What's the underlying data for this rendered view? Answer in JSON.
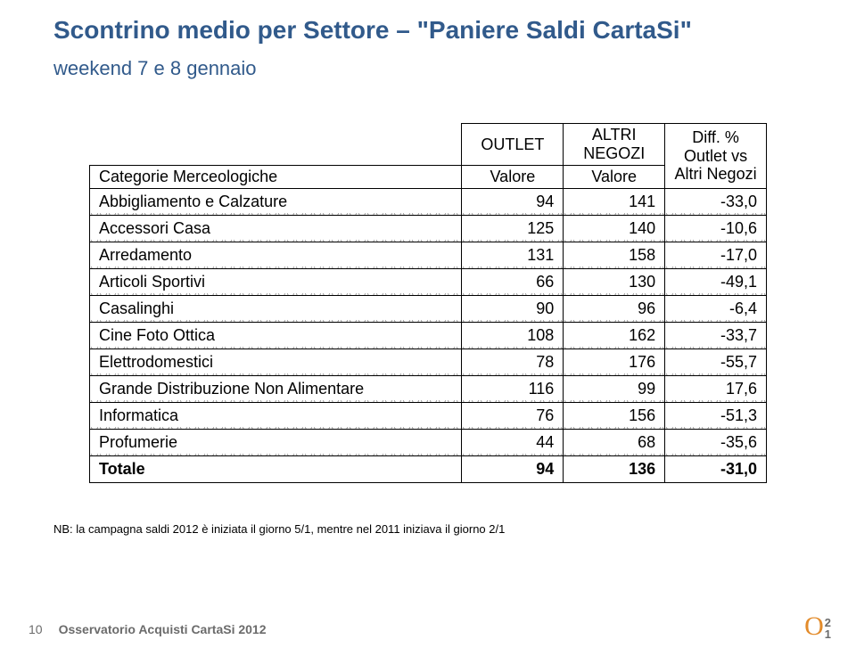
{
  "title": "Scontrino medio per Settore – \"Paniere Saldi CartaSi\"",
  "subtitle": "weekend 7 e 8 gennaio",
  "table": {
    "header_outlet": "OUTLET",
    "header_altri": "ALTRI NEGOZI",
    "header_diff": "Diff. %",
    "header_cat": "Categorie Merceologiche",
    "header_valore": "Valore",
    "header_outlet_vs": "Outlet vs Altri Negozi",
    "rows": [
      {
        "cat": "Abbigliamento e Calzature",
        "outlet": "94",
        "altri": "141",
        "diff": "-33,0"
      },
      {
        "cat": "Accessori Casa",
        "outlet": "125",
        "altri": "140",
        "diff": "-10,6"
      },
      {
        "cat": "Arredamento",
        "outlet": "131",
        "altri": "158",
        "diff": "-17,0"
      },
      {
        "cat": "Articoli Sportivi",
        "outlet": "66",
        "altri": "130",
        "diff": "-49,1"
      },
      {
        "cat": "Casalinghi",
        "outlet": "90",
        "altri": "96",
        "diff": "-6,4"
      },
      {
        "cat": "Cine Foto Ottica",
        "outlet": "108",
        "altri": "162",
        "diff": "-33,7"
      },
      {
        "cat": "Elettrodomestici",
        "outlet": "78",
        "altri": "176",
        "diff": "-55,7"
      },
      {
        "cat": "Grande Distribuzione Non Alimentare",
        "outlet": "116",
        "altri": "99",
        "diff": "17,6"
      },
      {
        "cat": "Informatica",
        "outlet": "76",
        "altri": "156",
        "diff": "-51,3"
      },
      {
        "cat": "Profumerie",
        "outlet": "44",
        "altri": "68",
        "diff": "-35,6"
      }
    ],
    "total": {
      "cat": "Totale",
      "outlet": "94",
      "altri": "136",
      "diff": "-31,0"
    }
  },
  "note": "NB: la campagna saldi 2012 è iniziata il giorno 5/1, mentre nel 2011 iniziava il giorno 2/1",
  "footer": {
    "page_num": "10",
    "observatory": "Osservatorio Acquisti CartaSi 2012",
    "logo_o": "O",
    "logo_1": "1",
    "logo_2": "2"
  }
}
